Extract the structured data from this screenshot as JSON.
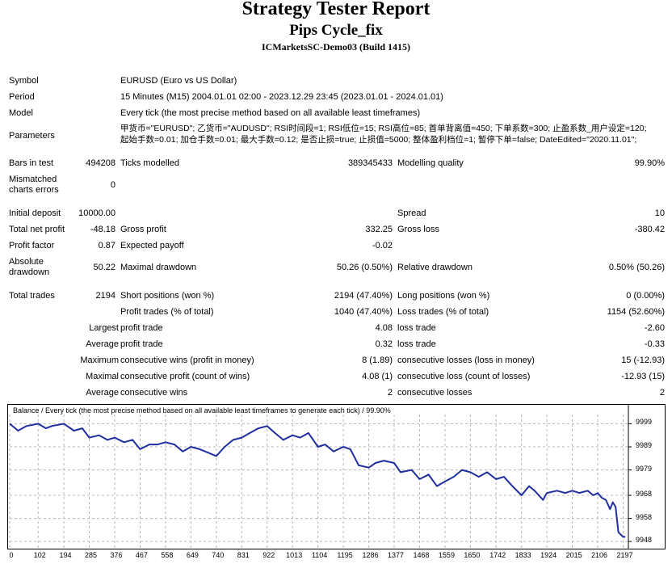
{
  "header": {
    "title": "Strategy Tester Report",
    "expert": "Pips Cycle_fix",
    "server_build": "ICMarketsSC-Demo03 (Build 1415)"
  },
  "info": {
    "symbol_label": "Symbol",
    "symbol_value": "EURUSD (Euro vs US Dollar)",
    "period_label": "Period",
    "period_value": "15 Minutes (M15) 2004.01.01 02:00 - 2023.12.29 23:45 (2023.01.01 - 2024.01.01)",
    "model_label": "Model",
    "model_value": "Every tick (the most precise method based on all available least timeframes)",
    "parameters_label": "Parameters",
    "parameters_line1": "甲货币=\"EURUSD\"; 乙货币=\"AUDUSD\"; RSI时间段=1; RSI低位=15; RSI高位=85; 首单背离值=450; 下单系数=300; 止盈系数_用户设定=120;",
    "parameters_line2": "起始手数=0.01; 加仓手数=0.01; 最大手数=0.12; 是否止损=true; 止损值=5000; 整体盈利档位=1; 暂停下单=false; DateEdited=\"2020.11.01\";"
  },
  "stats": {
    "bars_label": "Bars in test",
    "bars_value": "494208",
    "ticks_label": "Ticks modelled",
    "ticks_value": "389345433",
    "quality_label": "Modelling quality",
    "quality_value": "99.90%",
    "mismatch_label_1": "Mismatched",
    "mismatch_label_2": "charts errors",
    "mismatch_value": "0",
    "initial_deposit_label": "Initial deposit",
    "initial_deposit_value": "10000.00",
    "spread_label": "Spread",
    "spread_value": "10",
    "net_profit_label": "Total net profit",
    "net_profit_value": "-48.18",
    "gross_profit_label": "Gross profit",
    "gross_profit_value": "332.25",
    "gross_loss_label": "Gross loss",
    "gross_loss_value": "-380.42",
    "profit_factor_label": "Profit factor",
    "profit_factor_value": "0.87",
    "expected_payoff_label": "Expected payoff",
    "expected_payoff_value": "-0.02",
    "abs_dd_label_1": "Absolute",
    "abs_dd_label_2": "drawdown",
    "abs_dd_value": "50.22",
    "max_dd_label": "Maximal drawdown",
    "max_dd_value": "50.26 (0.50%)",
    "rel_dd_label": "Relative drawdown",
    "rel_dd_value": "0.50% (50.26)",
    "total_trades_label": "Total trades",
    "total_trades_value": "2194",
    "short_label": "Short positions (won %)",
    "short_value": "2194 (47.40%)",
    "long_label": "Long positions (won %)",
    "long_value": "0 (0.00%)",
    "profit_trades_label": "Profit trades (% of total)",
    "profit_trades_value": "1040 (47.40%)",
    "loss_trades_label": "Loss trades (% of total)",
    "loss_trades_value": "1154 (52.60%)",
    "largest_label": "Largest",
    "largest_profit_label": "profit trade",
    "largest_profit_value": "4.08",
    "largest_loss_label": "loss trade",
    "largest_loss_value": "-2.60",
    "average_label": "Average",
    "average_profit_label": "profit trade",
    "average_profit_value": "0.32",
    "average_loss_label": "loss trade",
    "average_loss_value": "-0.33",
    "maximum_label": "Maximum",
    "max_cons_wins_label": "consecutive wins (profit in money)",
    "max_cons_wins_value": "8 (1.89)",
    "max_cons_losses_label": "consecutive losses (loss in money)",
    "max_cons_losses_value": "15 (-12.93)",
    "maximal_label": "Maximal",
    "maximal_profit_label": "consecutive profit (count of wins)",
    "maximal_profit_value": "4.08 (1)",
    "maximal_loss_label": "consecutive loss (count of losses)",
    "maximal_loss_value": "-12.93 (15)",
    "avg_cons_label": "Average",
    "avg_cons_wins_label": "consecutive wins",
    "avg_cons_wins_value": "2",
    "avg_cons_losses_label": "consecutive losses",
    "avg_cons_losses_value": "2"
  },
  "chart_data": {
    "type": "line",
    "title": "Balance / Every tick (the most precise method based on all available least timeframes to generate each tick) / 99.90%",
    "xlabel": "",
    "ylabel": "",
    "x_ticks": [
      0,
      102,
      194,
      285,
      376,
      467,
      558,
      649,
      740,
      831,
      922,
      1013,
      1104,
      1195,
      1286,
      1377,
      1468,
      1559,
      1650,
      1742,
      1833,
      1924,
      2015,
      2106,
      2197
    ],
    "y_ticks": [
      9948,
      9958,
      9968,
      9979,
      9989,
      9999
    ],
    "xlim": [
      0,
      2210
    ],
    "ylim": [
      9947,
      10003
    ],
    "grid": true,
    "line_color": "#1f2fa0",
    "series": [
      {
        "name": "",
        "x": [
          0,
          30,
          60,
          102,
          130,
          150,
          194,
          230,
          260,
          285,
          320,
          350,
          376,
          410,
          440,
          467,
          500,
          530,
          558,
          590,
          620,
          649,
          680,
          700,
          720,
          740,
          770,
          800,
          831,
          860,
          890,
          922,
          950,
          980,
          1013,
          1040,
          1070,
          1104,
          1130,
          1160,
          1195,
          1220,
          1250,
          1286,
          1310,
          1340,
          1377,
          1400,
          1440,
          1468,
          1500,
          1530,
          1559,
          1590,
          1620,
          1650,
          1680,
          1710,
          1742,
          1770,
          1800,
          1833,
          1860,
          1880,
          1910,
          1924,
          1960,
          1990,
          2015,
          2040,
          2070,
          2090,
          2106,
          2120,
          2135,
          2150,
          2160,
          2170,
          2180,
          2197,
          2205
        ],
        "y": [
          9999,
          9996,
          9998,
          9999,
          9997,
          9998,
          9999,
          9996,
          9997,
          9993,
          9994,
          9992,
          9993,
          9991,
          9992,
          9988,
          9990,
          9990,
          9991,
          9990,
          9987,
          9989,
          9988,
          9987,
          9986,
          9985,
          9989,
          9992,
          9993,
          9995,
          9997,
          9998,
          9995,
          9992,
          9994,
          9993,
          9995,
          9989,
          9990,
          9987,
          9989,
          9988,
          9981,
          9980,
          9982,
          9983,
          9982,
          9978,
          9979,
          9975,
          9977,
          9972,
          9974,
          9976,
          9979,
          9978,
          9976,
          9978,
          9975,
          9976,
          9972,
          9968,
          9972,
          9970,
          9966,
          9969,
          9970,
          9969,
          9970,
          9969,
          9970,
          9968,
          9969,
          9967,
          9966,
          9962,
          9965,
          9963,
          9952,
          9950,
          9950
        ]
      }
    ]
  }
}
